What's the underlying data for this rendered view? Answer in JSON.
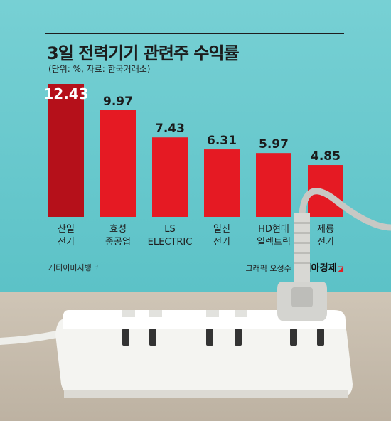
{
  "title": "3일 전력기기 관련주 수익률",
  "subtitle": "(단위: %, 자료: 한국거래소)",
  "photo_credit": "게티이미지뱅크",
  "graphic_credit": "그래픽 오성수",
  "publisher": "아시아경제",
  "colors": {
    "bar": "#e51a23",
    "bar_highlight": "#b5101a",
    "background": "#6cc9cd"
  },
  "chart_data": {
    "type": "bar",
    "categories": [
      "산일 전기",
      "효성 중공업",
      "LS ELECTRIC",
      "일진 전기",
      "HD현대 일렉트릭",
      "제룡 전기"
    ],
    "category_lines": [
      [
        "산일",
        "전기"
      ],
      [
        "효성",
        "중공업"
      ],
      [
        "LS",
        "ELECTRIC"
      ],
      [
        "일진",
        "전기"
      ],
      [
        "HD현대",
        "일렉트릭"
      ],
      [
        "제룡",
        "전기"
      ]
    ],
    "values": [
      12.43,
      9.97,
      7.43,
      6.31,
      5.97,
      4.85
    ],
    "value_labels": [
      "12.43",
      "9.97",
      "7.43",
      "6.31",
      "5.97",
      "4.85"
    ],
    "title": "3일 전력기기 관련주 수익률",
    "ylim": [
      0,
      12.43
    ],
    "grid": false,
    "legend": "none"
  }
}
